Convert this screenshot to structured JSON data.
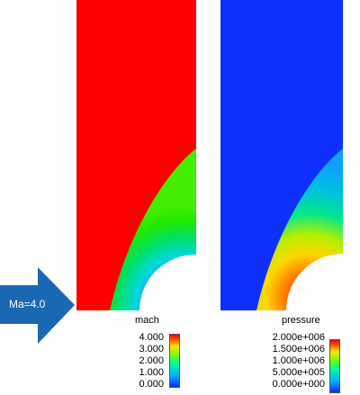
{
  "flow_label": "Ma=4.0",
  "colors": {
    "arrow": "#1a67b3",
    "mach_background": "#ff0000",
    "pressure_background": "#0f2fff"
  },
  "mach_legend": {
    "title": "mach",
    "ticks": [
      "4.000",
      "3.000",
      "2.000",
      "1.000",
      "0.000"
    ]
  },
  "pressure_legend": {
    "title": "pressure",
    "ticks": [
      "2.000e+006",
      "1.500e+006",
      "1.000e+006",
      "5.000e+005",
      "0.000e+000"
    ]
  }
}
